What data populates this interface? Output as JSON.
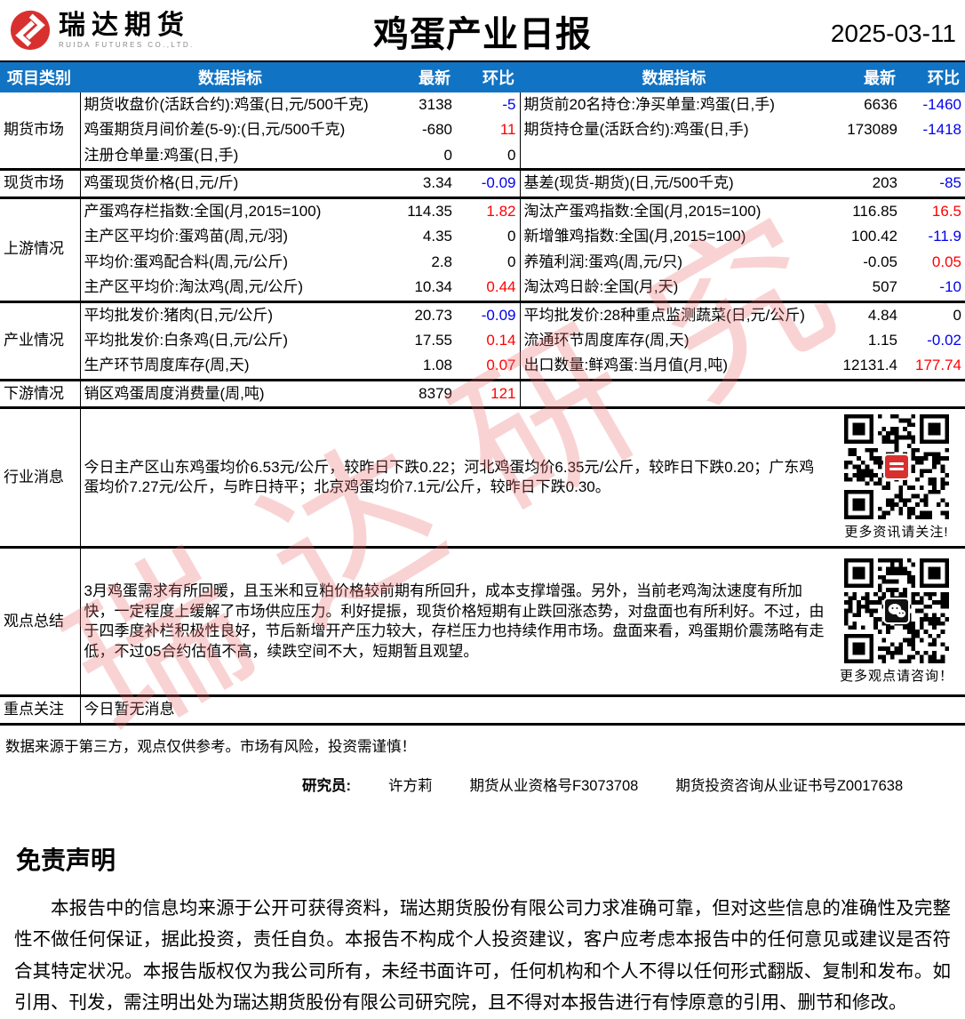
{
  "header": {
    "brand": "瑞达期货",
    "brand_sub": "RUIDA FUTURES CO.,LTD.",
    "title": "鸡蛋产业日报",
    "date": "2025-03-11"
  },
  "colors": {
    "header_blue": "#1173C4",
    "increase_red": "#FF0000",
    "decrease_blue": "#0000EE",
    "brand_red": "#d8302f",
    "watermark_pink": "#ec6c6c"
  },
  "watermark": {
    "text": "瑞达研究"
  },
  "table": {
    "columns": [
      "项目类别",
      "数据指标",
      "最新",
      "环比",
      "数据指标",
      "最新",
      "环比"
    ],
    "sections": [
      {
        "category": "期货市场",
        "rows": [
          {
            "left": {
              "label": "期货收盘价(活跃合约):鸡蛋(日,元/500千克)",
              "latest": "3138",
              "chg": "-5"
            },
            "right": {
              "label": "期货前20名持仓:净买单量:鸡蛋(日,手)",
              "latest": "6636",
              "chg": "-1460"
            }
          },
          {
            "left": {
              "label": "鸡蛋期货月间价差(5-9):(日,元/500千克)",
              "latest": "-680",
              "chg": "11"
            },
            "right": {
              "label": "期货持仓量(活跃合约):鸡蛋(日,手)",
              "latest": "173089",
              "chg": "-1418"
            }
          },
          {
            "left": {
              "label": "注册仓单量:鸡蛋(日,手)",
              "latest": "0",
              "chg": "0"
            },
            "right": null
          }
        ]
      },
      {
        "category": "现货市场",
        "rows": [
          {
            "left": {
              "label": "鸡蛋现货价格(日,元/斤)",
              "latest": "3.34",
              "chg": "-0.09"
            },
            "right": {
              "label": "基差(现货-期货)(日,元/500千克)",
              "latest": "203",
              "chg": "-85"
            }
          }
        ]
      },
      {
        "category": "上游情况",
        "rows": [
          {
            "left": {
              "label": "产蛋鸡存栏指数:全国(月,2015=100)",
              "latest": "114.35",
              "chg": "1.82"
            },
            "right": {
              "label": "淘汰产蛋鸡指数:全国(月,2015=100)",
              "latest": "116.85",
              "chg": "16.5"
            }
          },
          {
            "left": {
              "label": "主产区平均价:蛋鸡苗(周,元/羽)",
              "latest": "4.35",
              "chg": "0"
            },
            "right": {
              "label": "新增雏鸡指数:全国(月,2015=100)",
              "latest": "100.42",
              "chg": "-11.9"
            }
          },
          {
            "left": {
              "label": "平均价:蛋鸡配合料(周,元/公斤)",
              "latest": "2.8",
              "chg": "0"
            },
            "right": {
              "label": "养殖利润:蛋鸡(周,元/只)",
              "latest": "-0.05",
              "chg": "0.05"
            }
          },
          {
            "left": {
              "label": "主产区平均价:淘汰鸡(周,元/公斤)",
              "latest": "10.34",
              "chg": "0.44"
            },
            "right": {
              "label": "淘汰鸡日龄:全国(月,天)",
              "latest": "507",
              "chg": "-10"
            }
          }
        ]
      },
      {
        "category": "产业情况",
        "rows": [
          {
            "left": {
              "label": "平均批发价:猪肉(日,元/公斤)",
              "latest": "20.73",
              "chg": "-0.09"
            },
            "right": {
              "label": "平均批发价:28种重点监测蔬菜(日,元/公斤)",
              "latest": "4.84",
              "chg": "0"
            }
          },
          {
            "left": {
              "label": "平均批发价:白条鸡(日,元/公斤)",
              "latest": "17.55",
              "chg": "0.14"
            },
            "right": {
              "label": "流通环节周度库存(周,天)",
              "latest": "1.15",
              "chg": "-0.02"
            }
          },
          {
            "left": {
              "label": "生产环节周度库存(周,天)",
              "latest": "1.08",
              "chg": "0.07"
            },
            "right": {
              "label": "出口数量:鲜鸡蛋:当月值(月,吨)",
              "latest": "12131.4",
              "chg": "177.74"
            }
          }
        ]
      },
      {
        "category": "下游情况",
        "rows": [
          {
            "left": {
              "label": "销区鸡蛋周度消费量(周,吨)",
              "latest": "8379",
              "chg": "121"
            },
            "right": null
          }
        ]
      }
    ],
    "news": {
      "category": "行业消息",
      "text": "今日主产区山东鸡蛋均价6.53元/公斤，较昨日下跌0.22；河北鸡蛋均价6.35元/公斤，较昨日下跌0.20；广东鸡蛋均价7.27元/公斤，与昨日持平；北京鸡蛋均价7.1元/公斤，较昨日下跌0.30。",
      "qr_caption": "更多资讯请关注!"
    },
    "summary": {
      "category": "观点总结",
      "text": "3月鸡蛋需求有所回暖，且玉米和豆粕价格较前期有所回升，成本支撑增强。另外，当前老鸡淘汰速度有所加快，一定程度上缓解了市场供应压力。利好提振，现货价格短期有止跌回涨态势，对盘面也有所利好。不过，由于四季度补栏积极性良好，节后新增开产压力较大，存栏压力也持续作用市场。盘面来看，鸡蛋期价震荡略有走低，不过05合约估值不高，续跌空间不大，短期暂且观望。",
      "qr_caption": "更多观点请咨询！"
    },
    "focus": {
      "category": "重点关注",
      "text": "今日暂无消息"
    }
  },
  "footer": {
    "note": "数据来源于第三方，观点仅供参考。市场有风险，投资需谨慎！",
    "researcher_label": "研究员:",
    "researcher_name": "许方莉",
    "cert1": "期货从业资格号F3073708",
    "cert2": "期货投资咨询从业证书号Z0017638"
  },
  "disclaimer": {
    "title": "免责声明",
    "body": "本报告中的信息均来源于公开可获得资料，瑞达期货股份有限公司力求准确可靠，但对这些信息的准确性及完整性不做任何保证，据此投资，责任自负。本报告不构成个人投资建议，客户应考虑本报告中的任何意见或建议是否符合其特定状况。本报告版权仅为我公司所有，未经书面许可，任何机构和个人不得以任何形式翻版、复制和发布。如引用、刊发，需注明出处为瑞达期货股份有限公司研究院，且不得对本报告进行有悖原意的引用、删节和修改。"
  }
}
